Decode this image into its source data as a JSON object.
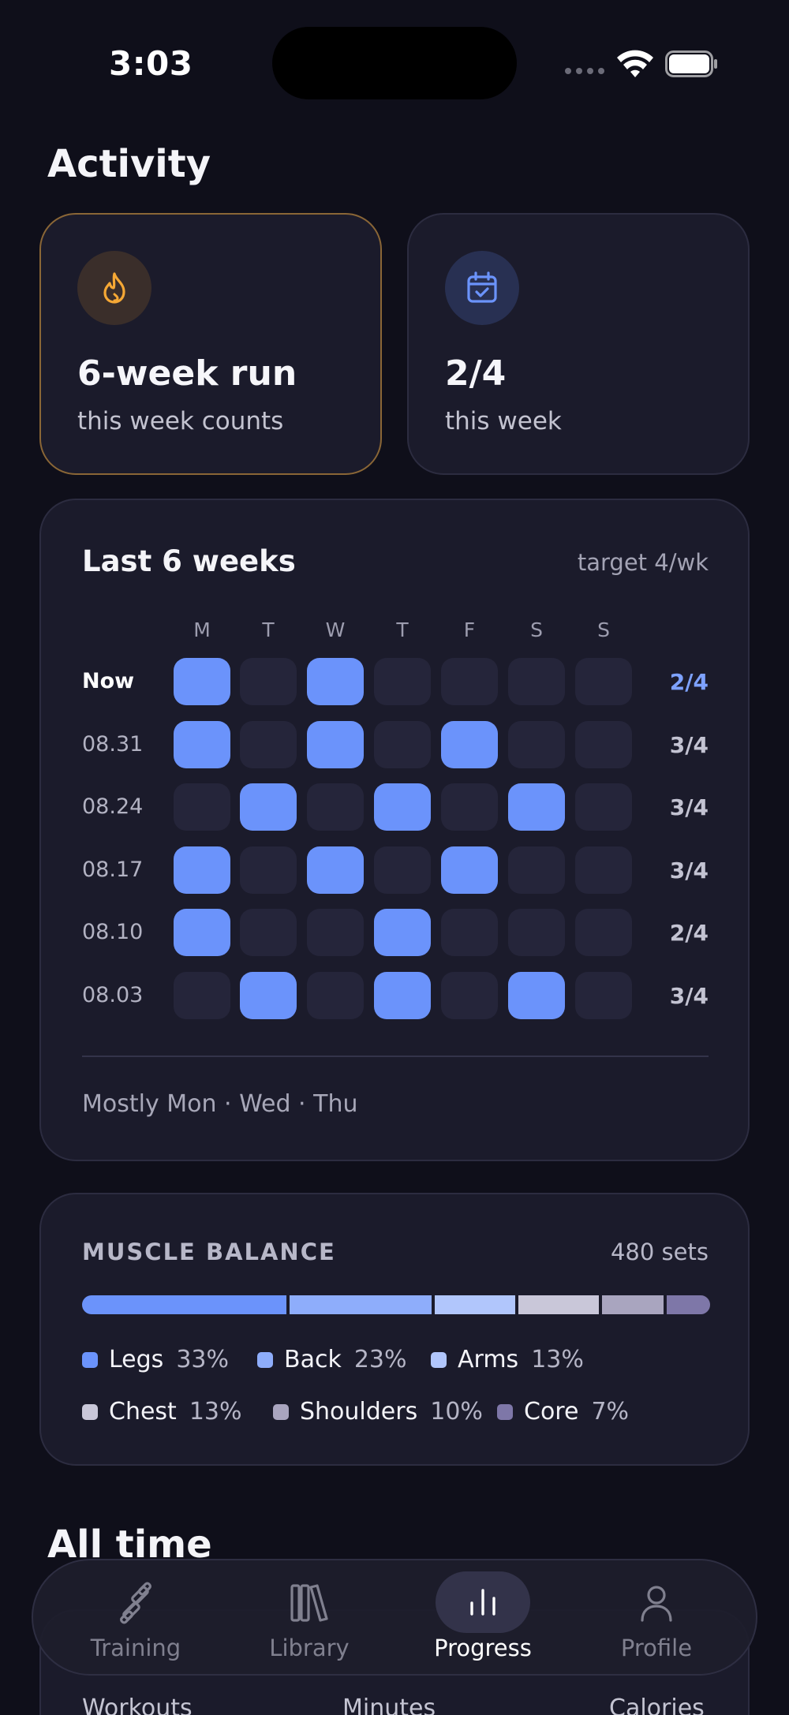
{
  "status": {
    "time": "3:03"
  },
  "activity": {
    "title": "Activity",
    "streak": {
      "value": "6-week run",
      "sub": "this week counts",
      "icon": "flame-icon"
    },
    "week": {
      "value": "2/4",
      "sub": "this week",
      "icon": "calendar-check-icon"
    }
  },
  "weeks": {
    "title": "Last 6 weeks",
    "target": "target 4/wk",
    "days": [
      "M",
      "T",
      "W",
      "T",
      "F",
      "S",
      "S"
    ],
    "rows": [
      {
        "label": "Now",
        "count": "2/4",
        "days": [
          1,
          0,
          1,
          0,
          0,
          0,
          0
        ]
      },
      {
        "label": "08.31",
        "count": "3/4",
        "days": [
          1,
          0,
          1,
          0,
          1,
          0,
          0
        ]
      },
      {
        "label": "08.24",
        "count": "3/4",
        "days": [
          0,
          1,
          0,
          1,
          0,
          1,
          0
        ]
      },
      {
        "label": "08.17",
        "count": "3/4",
        "days": [
          1,
          0,
          1,
          0,
          1,
          0,
          0
        ]
      },
      {
        "label": "08.10",
        "count": "2/4",
        "days": [
          1,
          0,
          0,
          1,
          0,
          0,
          0
        ]
      },
      {
        "label": "08.03",
        "count": "3/4",
        "days": [
          0,
          1,
          0,
          1,
          0,
          1,
          0
        ]
      }
    ],
    "pattern": "Mostly Mon · Wed · Thu",
    "active_color": "#6b93fb"
  },
  "muscle": {
    "title": "MUSCLE BALANCE",
    "total": "480 sets",
    "groups": [
      {
        "name": "Legs",
        "pct": "33%",
        "share": 33,
        "color": "#6b93fb"
      },
      {
        "name": "Back",
        "pct": "23%",
        "share": 23,
        "color": "#8eadfb"
      },
      {
        "name": "Arms",
        "pct": "13%",
        "share": 13,
        "color": "#b1c6fc"
      },
      {
        "name": "Chest",
        "pct": "13%",
        "share": 13,
        "color": "#c9c7d9"
      },
      {
        "name": "Shoulders",
        "pct": "10%",
        "share": 10,
        "color": "#a9a5bf"
      },
      {
        "name": "Core",
        "pct": "7%",
        "share": 7,
        "color": "#7e77a8"
      }
    ]
  },
  "alltime": {
    "title": "All time",
    "labels": [
      "Workouts",
      "Minutes",
      "Calories"
    ]
  },
  "tabs": [
    {
      "label": "Training",
      "icon": "dumbbell-icon",
      "active": false
    },
    {
      "label": "Library",
      "icon": "library-icon",
      "active": false
    },
    {
      "label": "Progress",
      "icon": "bar-chart-icon",
      "active": true
    },
    {
      "label": "Profile",
      "icon": "person-icon",
      "active": false
    }
  ]
}
